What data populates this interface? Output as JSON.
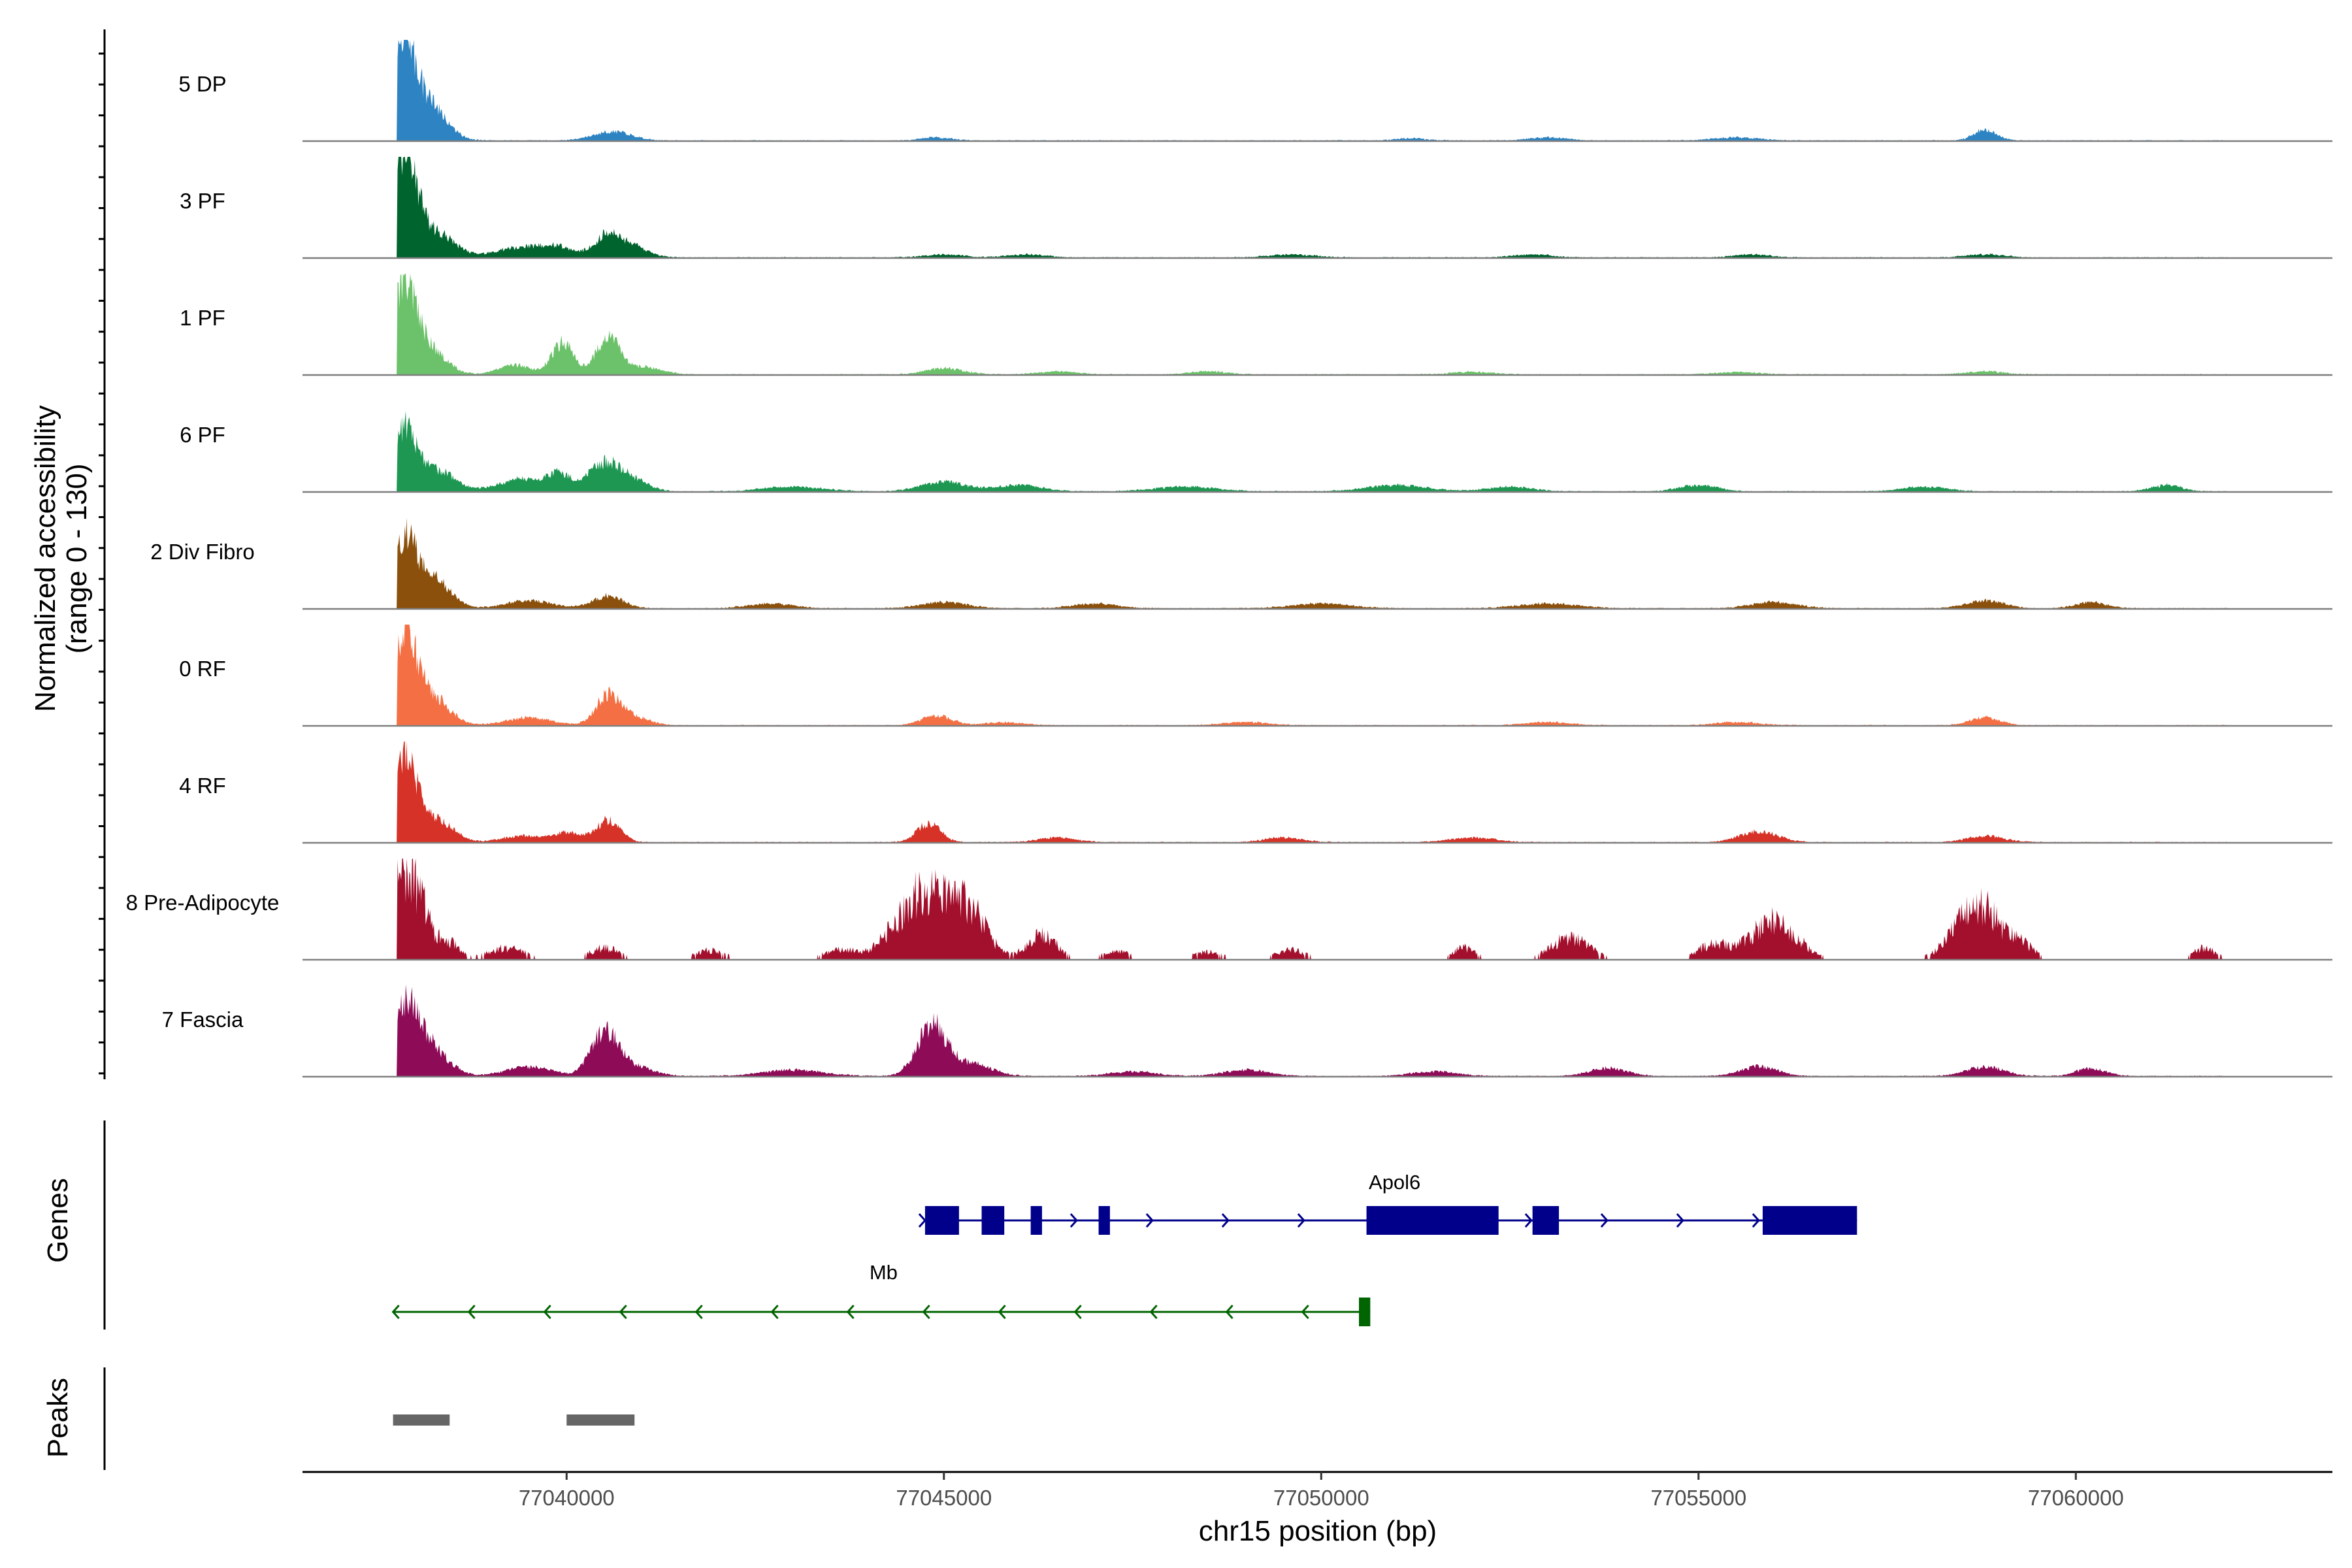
{
  "chart_data": {
    "type": "coverage-track",
    "ylabel_line1": "Normalized accessibility",
    "ylabel_line2": "(range 0 - 130)",
    "xlabel": "chr15 position (bp)",
    "xlim": [
      77036500,
      77063400
    ],
    "x_ticks": [
      77040000,
      77045000,
      77050000,
      77055000,
      77060000
    ],
    "x_tick_labels": [
      "77040000",
      "77045000",
      "77050000",
      "77055000",
      "77060000"
    ],
    "y_range": [
      0,
      130
    ],
    "tracks": [
      {
        "name": "5 DP",
        "color": "#2E84C2",
        "style": "smooth",
        "peaks": [
          [
            77037800,
            120,
            150
          ],
          [
            77038100,
            55,
            250
          ],
          [
            77040600,
            12,
            250
          ],
          [
            77044900,
            4,
            200
          ],
          [
            77051200,
            3,
            200
          ],
          [
            77053000,
            4,
            250
          ],
          [
            77055500,
            4,
            300
          ],
          [
            77058800,
            14,
            150
          ]
        ]
      },
      {
        "name": "3 PF",
        "color": "#00642E",
        "style": "smooth",
        "peaks": [
          [
            77037850,
            125,
            150
          ],
          [
            77038200,
            35,
            280
          ],
          [
            77039400,
            14,
            300
          ],
          [
            77039900,
            12,
            200
          ],
          [
            77040550,
            30,
            180
          ],
          [
            77040900,
            12,
            200
          ],
          [
            77045000,
            4,
            250
          ],
          [
            77046100,
            4,
            250
          ],
          [
            77049600,
            4,
            300
          ],
          [
            77052800,
            4,
            250
          ],
          [
            77055700,
            4,
            250
          ],
          [
            77058800,
            4,
            250
          ]
        ]
      },
      {
        "name": "1 PF",
        "color": "#6CC26A",
        "style": "smooth",
        "peaks": [
          [
            77037850,
            110,
            150
          ],
          [
            77038150,
            35,
            230
          ],
          [
            77039300,
            12,
            200
          ],
          [
            77039950,
            40,
            150
          ],
          [
            77040550,
            48,
            150
          ],
          [
            77041000,
            10,
            250
          ],
          [
            77045000,
            8,
            250
          ],
          [
            77046500,
            4,
            250
          ],
          [
            77048500,
            4,
            250
          ],
          [
            77052000,
            3,
            300
          ],
          [
            77055500,
            3,
            300
          ],
          [
            77058800,
            4,
            250
          ]
        ]
      },
      {
        "name": "6 PF",
        "color": "#1D9752",
        "style": "smooth",
        "peaks": [
          [
            77037850,
            75,
            150
          ],
          [
            77038250,
            28,
            250
          ],
          [
            77039400,
            16,
            300
          ],
          [
            77039900,
            20,
            150
          ],
          [
            77040500,
            36,
            220
          ],
          [
            77040900,
            12,
            200
          ],
          [
            77043000,
            6,
            400
          ],
          [
            77045000,
            12,
            300
          ],
          [
            77046000,
            8,
            300
          ],
          [
            77048200,
            6,
            400
          ],
          [
            77051000,
            8,
            400
          ],
          [
            77052500,
            6,
            300
          ],
          [
            77055000,
            8,
            250
          ],
          [
            77058000,
            6,
            300
          ],
          [
            77061200,
            8,
            200
          ]
        ]
      },
      {
        "name": "2 Div Fibro",
        "color": "#8B500B",
        "style": "smooth",
        "peaks": [
          [
            77037850,
            80,
            150
          ],
          [
            77038200,
            40,
            230
          ],
          [
            77039500,
            10,
            300
          ],
          [
            77040550,
            16,
            200
          ],
          [
            77042700,
            6,
            300
          ],
          [
            77045000,
            8,
            300
          ],
          [
            77047000,
            6,
            300
          ],
          [
            77050000,
            6,
            400
          ],
          [
            77053000,
            6,
            400
          ],
          [
            77056000,
            8,
            300
          ],
          [
            77058800,
            10,
            250
          ],
          [
            77060200,
            8,
            200
          ]
        ]
      },
      {
        "name": "0 RF",
        "color": "#F47044",
        "style": "smooth",
        "peaks": [
          [
            77037850,
            115,
            150
          ],
          [
            77038200,
            38,
            230
          ],
          [
            77039500,
            10,
            300
          ],
          [
            77040550,
            38,
            160
          ],
          [
            77040900,
            10,
            200
          ],
          [
            77044900,
            12,
            200
          ],
          [
            77045800,
            4,
            250
          ],
          [
            77049000,
            4,
            300
          ],
          [
            77053000,
            4,
            300
          ],
          [
            77055500,
            4,
            300
          ],
          [
            77058800,
            10,
            200
          ]
        ]
      },
      {
        "name": "4 RF",
        "color": "#D63227",
        "style": "smooth",
        "peaks": [
          [
            77037850,
            105,
            150
          ],
          [
            77038250,
            30,
            230
          ],
          [
            77039400,
            8,
            250
          ],
          [
            77040000,
            12,
            200
          ],
          [
            77040550,
            28,
            160
          ],
          [
            77044800,
            24,
            160
          ],
          [
            77046500,
            6,
            250
          ],
          [
            77049500,
            6,
            250
          ],
          [
            77052000,
            6,
            300
          ],
          [
            77055800,
            14,
            250
          ],
          [
            77058800,
            8,
            250
          ]
        ]
      },
      {
        "name": "8 Pre-Adipocyte",
        "color": "#A3102D",
        "style": "blocky",
        "peaks": [
          [
            77037800,
            95,
            120
          ],
          [
            77038050,
            80,
            120
          ],
          [
            77038400,
            25,
            150
          ],
          [
            77039200,
            15,
            250
          ],
          [
            77040500,
            15,
            200
          ],
          [
            77041900,
            12,
            200
          ],
          [
            77043600,
            12,
            200
          ],
          [
            77044800,
            90,
            400
          ],
          [
            77045400,
            35,
            200
          ],
          [
            77046300,
            30,
            200
          ],
          [
            77047300,
            10,
            200
          ],
          [
            77048500,
            10,
            200
          ],
          [
            77049600,
            12,
            200
          ],
          [
            77051900,
            15,
            150
          ],
          [
            77053300,
            28,
            250
          ],
          [
            77055200,
            20,
            200
          ],
          [
            77056000,
            50,
            300
          ],
          [
            77058700,
            70,
            300
          ],
          [
            77059300,
            15,
            150
          ],
          [
            77061700,
            15,
            150
          ]
        ]
      },
      {
        "name": "7 Fascia",
        "color": "#8E0B57",
        "style": "smooth",
        "peaks": [
          [
            77037850,
            85,
            180
          ],
          [
            77038200,
            35,
            230
          ],
          [
            77039500,
            12,
            300
          ],
          [
            77040500,
            55,
            180
          ],
          [
            77040900,
            12,
            250
          ],
          [
            77043000,
            8,
            400
          ],
          [
            77044850,
            65,
            200
          ],
          [
            77045400,
            15,
            250
          ],
          [
            77047500,
            6,
            300
          ],
          [
            77049000,
            8,
            300
          ],
          [
            77051500,
            6,
            300
          ],
          [
            77053800,
            10,
            250
          ],
          [
            77055800,
            12,
            250
          ],
          [
            77058800,
            12,
            250
          ],
          [
            77060200,
            10,
            200
          ]
        ]
      }
    ],
    "genes_label": "Genes",
    "genes": [
      {
        "name": "Apol6",
        "color": "#00008B",
        "strand": "+",
        "start": 77044750,
        "end": 77057100,
        "exons": [
          [
            77044750,
            77045200
          ],
          [
            77045500,
            77045800
          ],
          [
            77046150,
            77046300
          ],
          [
            77047050,
            77047200
          ],
          [
            77050600,
            77052350
          ],
          [
            77052800,
            77053150
          ],
          [
            77055850,
            77057100
          ]
        ],
        "row": 1
      },
      {
        "name": "Mb",
        "color": "#006400",
        "strand": "-",
        "start": 77037700,
        "end": 77050650,
        "exons": [
          [
            77050500,
            77050650
          ]
        ],
        "row": 2
      }
    ],
    "peaks_label": "Peaks",
    "peak_regions": [
      [
        77037700,
        77038450
      ],
      [
        77040000,
        77040900
      ]
    ],
    "peak_color": "#666666"
  }
}
